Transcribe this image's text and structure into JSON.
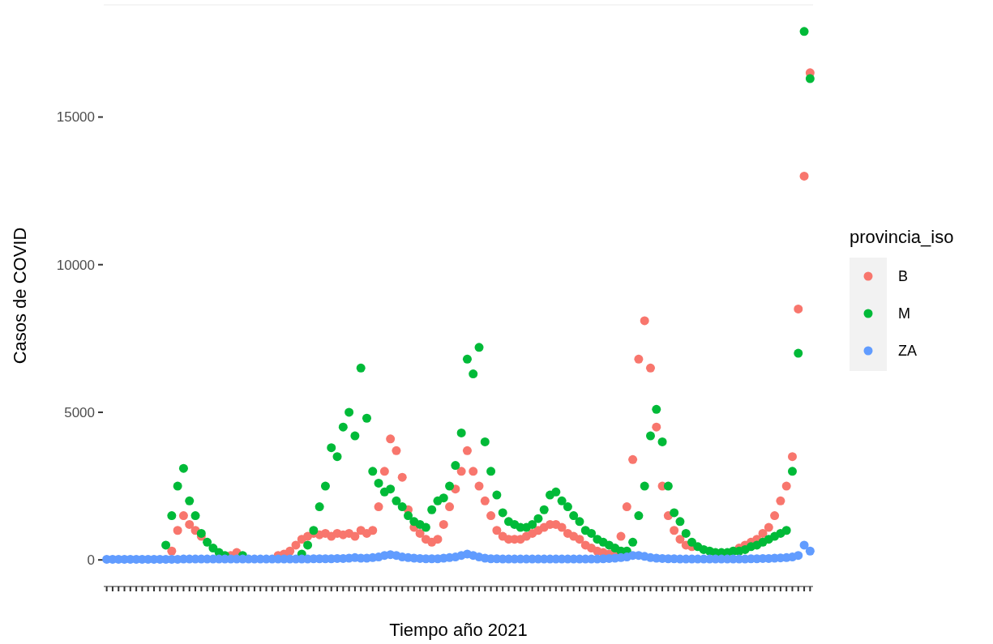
{
  "chart_data": {
    "type": "scatter",
    "xlabel": "Tiempo año 2021",
    "ylabel": "Casos de COVID",
    "legend_title": "provincia_iso",
    "legend": "right",
    "marker": "circle",
    "grid": false,
    "categories": [
      null,
      null,
      null,
      null,
      null,
      null,
      null,
      null,
      null,
      null,
      null,
      null,
      null,
      null,
      null,
      null,
      null,
      null,
      null,
      null,
      null,
      null,
      null,
      null,
      null,
      null,
      null,
      null,
      null,
      null,
      null,
      null,
      null,
      null,
      null,
      null,
      null,
      null,
      null,
      null,
      null,
      null,
      null,
      null,
      null,
      null,
      null,
      null,
      null,
      null,
      null,
      null,
      null,
      null,
      null,
      null,
      null,
      null,
      null,
      null,
      null,
      null,
      null,
      null,
      null,
      null,
      null,
      null,
      null,
      null,
      null,
      null,
      null,
      null,
      null,
      null,
      null,
      null,
      null,
      null,
      null,
      null,
      null,
      null,
      null,
      null,
      null,
      null,
      null,
      null,
      null,
      null,
      null,
      null,
      null,
      null,
      null,
      null,
      null,
      null,
      null,
      null,
      null,
      null,
      null,
      null,
      null,
      null,
      null,
      null,
      null,
      null,
      null,
      null,
      null,
      null,
      null,
      null,
      null,
      null
    ],
    "ylim": [
      -900,
      18800
    ],
    "yticks": [
      0,
      5000,
      10000,
      15000
    ],
    "series": [
      {
        "name": "B",
        "color": "#f8766d",
        "values": [
          null,
          null,
          null,
          null,
          null,
          null,
          null,
          null,
          null,
          null,
          null,
          300,
          1000,
          1500,
          1200,
          1000,
          800,
          null,
          null,
          null,
          null,
          150,
          250,
          null,
          null,
          null,
          null,
          null,
          null,
          150,
          200,
          300,
          500,
          700,
          800,
          900,
          850,
          900,
          800,
          900,
          850,
          900,
          800,
          1000,
          900,
          1000,
          1800,
          3000,
          4100,
          3700,
          2800,
          1700,
          1100,
          900,
          700,
          600,
          700,
          1200,
          1800,
          2400,
          3000,
          3700,
          3000,
          2500,
          2000,
          1500,
          1000,
          800,
          700,
          700,
          700,
          800,
          900,
          1000,
          1100,
          1200,
          1200,
          1100,
          900,
          800,
          700,
          500,
          400,
          300,
          250,
          200,
          300,
          800,
          1800,
          3400,
          6800,
          8100,
          6500,
          4500,
          2500,
          1500,
          1000,
          700,
          500,
          450,
          null,
          null,
          null,
          null,
          null,
          null,
          null,
          400,
          500,
          600,
          700,
          900,
          1100,
          1500,
          2000,
          2500,
          3500,
          8500,
          13000,
          16500
        ]
      },
      {
        "name": "M",
        "color": "#00ba38",
        "values": [
          null,
          null,
          null,
          null,
          null,
          null,
          null,
          null,
          null,
          null,
          500,
          1500,
          2500,
          3100,
          2000,
          1500,
          900,
          600,
          400,
          250,
          150,
          null,
          null,
          150,
          null,
          null,
          null,
          null,
          null,
          null,
          null,
          null,
          null,
          200,
          500,
          1000,
          1800,
          2500,
          3800,
          3500,
          4500,
          5000,
          4200,
          6500,
          4800,
          3000,
          2600,
          2300,
          2400,
          2000,
          1800,
          1500,
          1300,
          1200,
          1100,
          1700,
          2000,
          2100,
          2500,
          3200,
          4300,
          6800,
          6300,
          7200,
          4000,
          3000,
          2200,
          1600,
          1300,
          1200,
          1100,
          1100,
          1200,
          1400,
          1700,
          2200,
          2300,
          2000,
          1800,
          1500,
          1300,
          1000,
          900,
          700,
          600,
          500,
          400,
          300,
          300,
          600,
          1500,
          2500,
          4200,
          5100,
          4000,
          2500,
          1600,
          1300,
          900,
          600,
          450,
          350,
          300,
          250,
          250,
          250,
          300,
          300,
          350,
          450,
          500,
          600,
          700,
          800,
          900,
          1000,
          3000,
          7000,
          17900,
          16300
        ]
      },
      {
        "name": "ZA",
        "color": "#619cff",
        "values": [
          20,
          20,
          20,
          20,
          20,
          20,
          20,
          20,
          20,
          20,
          20,
          20,
          20,
          30,
          30,
          30,
          30,
          30,
          30,
          30,
          30,
          30,
          30,
          30,
          30,
          30,
          30,
          30,
          30,
          30,
          30,
          30,
          30,
          30,
          30,
          40,
          40,
          40,
          40,
          50,
          50,
          60,
          80,
          60,
          60,
          80,
          100,
          150,
          180,
          150,
          100,
          80,
          60,
          50,
          40,
          40,
          40,
          60,
          80,
          100,
          150,
          200,
          150,
          100,
          60,
          40,
          40,
          30,
          30,
          30,
          30,
          30,
          30,
          30,
          30,
          30,
          30,
          30,
          30,
          30,
          30,
          30,
          30,
          30,
          40,
          50,
          60,
          80,
          100,
          150,
          150,
          120,
          80,
          60,
          50,
          40,
          40,
          30,
          30,
          30,
          30,
          30,
          30,
          30,
          30,
          30,
          30,
          30,
          30,
          40,
          40,
          50,
          50,
          60,
          70,
          80,
          100,
          150,
          500,
          300
        ]
      }
    ]
  }
}
